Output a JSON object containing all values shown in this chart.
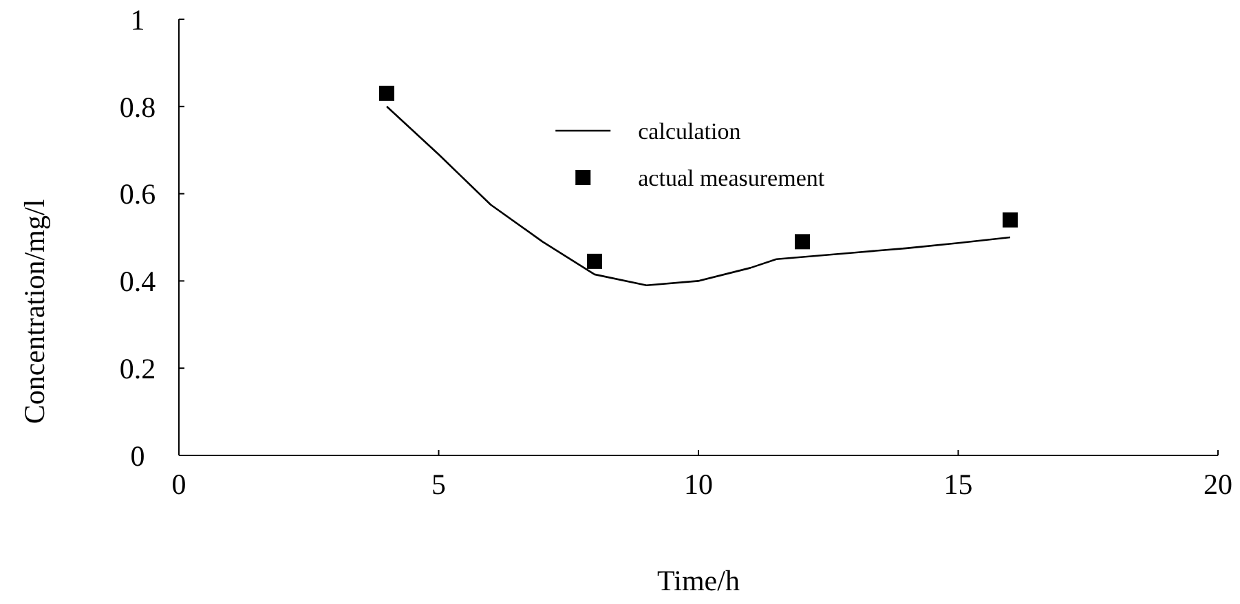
{
  "chart_data": {
    "type": "line",
    "xlabel": "Time/h",
    "ylabel": "Concentration/mg/l",
    "xlim": [
      0,
      20
    ],
    "ylim": [
      0,
      1
    ],
    "xticks": [
      0,
      5,
      10,
      15,
      20
    ],
    "yticks": [
      0,
      0.2,
      0.4,
      0.6,
      0.8,
      1
    ],
    "grid": false,
    "legend": "top",
    "series": [
      {
        "name": "calculation",
        "color": "#000000",
        "marker": "none",
        "line_style": "solid",
        "x": [
          4,
          5,
          6,
          7,
          8,
          9,
          10,
          11,
          11.5,
          13,
          14,
          15,
          16
        ],
        "values": [
          0.8,
          0.69,
          0.575,
          0.49,
          0.415,
          0.39,
          0.4,
          0.43,
          0.45,
          0.465,
          0.475,
          0.487,
          0.5
        ]
      },
      {
        "name": "actual measurement",
        "type": "scatter",
        "color": "#000000",
        "marker": "square",
        "x": [
          4,
          8,
          12,
          16
        ],
        "values": [
          0.83,
          0.445,
          0.49,
          0.54
        ]
      }
    ]
  }
}
